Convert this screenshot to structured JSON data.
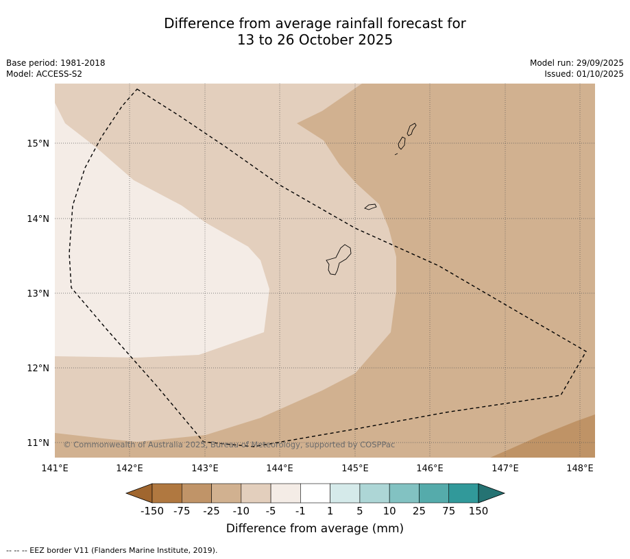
{
  "title": {
    "line1": "Difference from average rainfall forecast for",
    "line2": "13 to 26 October 2025"
  },
  "left_meta": {
    "base_period": "Base period: 1981-2018",
    "model": "Model: ACCESS-S2"
  },
  "right_meta": {
    "model_run": "Model run: 29/09/2025",
    "issued": "Issued: 01/10/2025"
  },
  "map": {
    "lon_labels": [
      "141°E",
      "142°E",
      "143°E",
      "144°E",
      "145°E",
      "146°E",
      "147°E",
      "148°E"
    ],
    "lat_labels": [
      "15°N",
      "14°N",
      "13°N",
      "12°N",
      "11°N"
    ],
    "lon_range": [
      141,
      148.2
    ],
    "lat_range": [
      10.8,
      15.8
    ],
    "copyright": "© Commonwealth of Australia 2025, Bureau of Meteorology, supported by COSPPac",
    "colors": {
      "band_m10_m25": "#d1b190",
      "band_m5_m10": "#e3cfbd",
      "band_m1_m5": "#f4ece6",
      "band_m25_m75": "#bf9366"
    }
  },
  "legend": {
    "labels": [
      "-150",
      "-75",
      "-25",
      "-10",
      "-5",
      "-1",
      "1",
      "5",
      "10",
      "25",
      "75",
      "150"
    ],
    "colors": [
      "#a0662f",
      "#b07840",
      "#c09468",
      "#d1b190",
      "#e3cfbd",
      "#f4ece6",
      "#ffffff",
      "#d5eaea",
      "#add6d6",
      "#82c2c2",
      "#55abab",
      "#31999a",
      "#257373"
    ],
    "title": "Difference from average (mm)"
  },
  "footnote": "--  --  -- EEZ border V11 (Flanders Marine Institute, 2019)."
}
